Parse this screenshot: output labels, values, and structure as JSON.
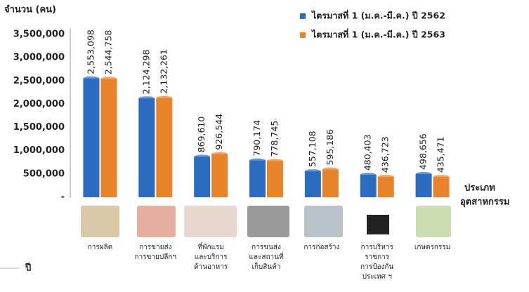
{
  "chart_data": {
    "type": "bar",
    "y_label": "จำนวน (คน)",
    "x_label": [
      "ประเภท",
      "อุตสาหกรรม"
    ],
    "footer_label": "ปี",
    "categories": [
      [
        "การผลิต"
      ],
      [
        "การขายส่ง",
        "การขายปลีกฯ"
      ],
      [
        "ที่พักแรม",
        "และบริการ",
        "ด้านอาหาร"
      ],
      [
        "การขนส่ง",
        "และสถานที่",
        "เก็บสินค้า"
      ],
      [
        "การก่อสร้าง"
      ],
      [
        "การบริหาร",
        "ราชการ",
        "การป้องกัน",
        "ประเทศ ฯ"
      ],
      [
        "เกษตรกรรม"
      ]
    ],
    "series": [
      {
        "name": "ไตรมาสที่ 1 (ม.ค.-มี.ค.) ปี 2562",
        "color": "#2b6cc0",
        "values": [
          2553098,
          2124298,
          869610,
          790174,
          557108,
          480403,
          498656
        ],
        "value_labels": [
          "2,553,098",
          "2,124,298",
          "869,610",
          "790,174",
          "557,108",
          "480,403",
          "498,656"
        ]
      },
      {
        "name": "ไตรมาสที่ 1 (ม.ค.-มี.ค.) ปี 2563",
        "color": "#e8832a",
        "values": [
          2544758,
          2132261,
          926544,
          778745,
          595186,
          436723,
          435471
        ],
        "value_labels": [
          "2,544,758",
          "2,132,261",
          "926,544",
          "778,745",
          "595,186",
          "436,723",
          "435,471"
        ]
      }
    ],
    "ylim": [
      0,
      3500000
    ],
    "yticks": [
      {
        "value": 0,
        "label": "-"
      },
      {
        "value": 500000,
        "label": "500,000"
      },
      {
        "value": 1000000,
        "label": "1,000,000"
      },
      {
        "value": 1500000,
        "label": "1,500,000"
      },
      {
        "value": 2000000,
        "label": "2,000,000"
      },
      {
        "value": 2500000,
        "label": "2,500,000"
      },
      {
        "value": 3000000,
        "label": "3,000,000"
      },
      {
        "value": 3500000,
        "label": "3,500,000"
      }
    ],
    "legend": "top-right"
  }
}
